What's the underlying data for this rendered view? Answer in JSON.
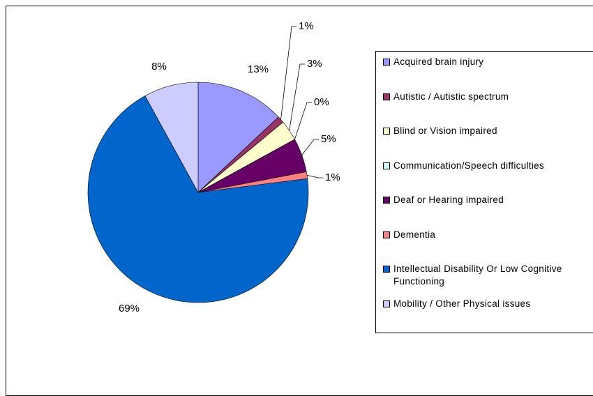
{
  "chart_data": {
    "type": "pie",
    "categories": [
      "Acquired brain injury",
      "Autistic / Autistic spectrum",
      "Blind or Vision impaired",
      "Communication/Speech difficulties",
      "Deaf or Hearing impaired",
      "Dementia",
      "Intellectual Disability Or Low Cognitive Functioning",
      "Mobility / Other Physical issues"
    ],
    "values": [
      13,
      1,
      3,
      0,
      5,
      1,
      69,
      8
    ],
    "value_labels": [
      "13%",
      "1%",
      "3%",
      "0%",
      "5%",
      "1%",
      "69%",
      "8%"
    ],
    "colors": [
      "#9999ff",
      "#993366",
      "#ffffcc",
      "#ccffff",
      "#660066",
      "#ff8080",
      "#0066cc",
      "#ccccff"
    ],
    "legend": "right"
  }
}
